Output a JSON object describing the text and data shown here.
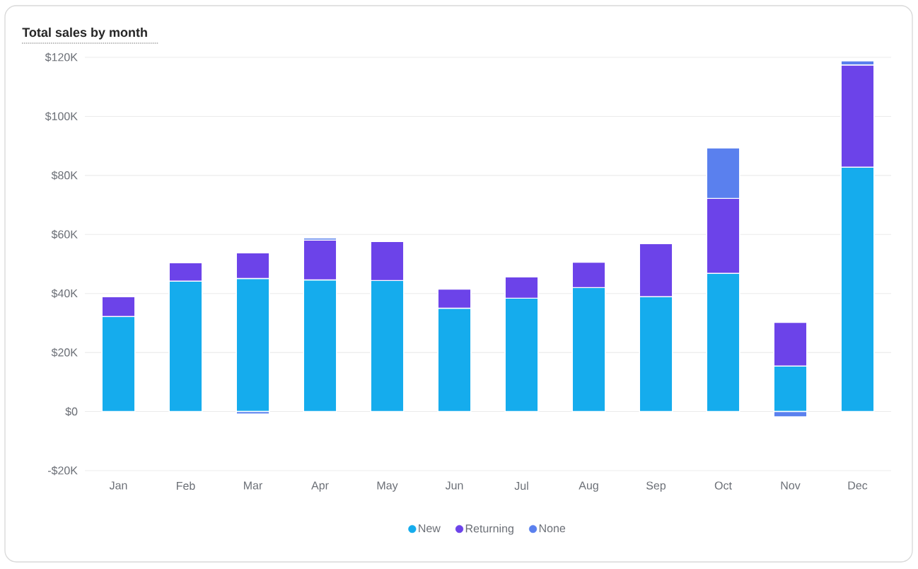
{
  "chart_data": {
    "type": "bar",
    "stacked": true,
    "title": "Total sales by month",
    "categories": [
      "Jan",
      "Feb",
      "Mar",
      "Apr",
      "May",
      "Jun",
      "Jul",
      "Aug",
      "Sep",
      "Oct",
      "Nov",
      "Dec"
    ],
    "series": [
      {
        "name": "New",
        "color": "#15aced",
        "values": [
          32200,
          44200,
          45100,
          44600,
          44400,
          35000,
          38400,
          42000,
          38900,
          46800,
          15400,
          82800
        ]
      },
      {
        "name": "Returning",
        "color": "#6c43e9",
        "values": [
          6700,
          6200,
          8700,
          13500,
          13200,
          6500,
          7200,
          8600,
          18000,
          25400,
          14800,
          34600
        ]
      },
      {
        "name": "None",
        "color": "#5a80ee",
        "values": [
          null,
          null,
          -800,
          700,
          null,
          null,
          null,
          null,
          null,
          17100,
          -1800,
          1400
        ]
      }
    ],
    "ylim": [
      -20000,
      120000
    ],
    "yticks": [
      {
        "value": -20000,
        "label": "-$20K"
      },
      {
        "value": 0,
        "label": "$0"
      },
      {
        "value": 20000,
        "label": "$20K"
      },
      {
        "value": 40000,
        "label": "$40K"
      },
      {
        "value": 60000,
        "label": "$60K"
      },
      {
        "value": 80000,
        "label": "$80K"
      },
      {
        "value": 100000,
        "label": "$100K"
      },
      {
        "value": 120000,
        "label": "$120K"
      }
    ],
    "grid": "y",
    "legend": "bottom"
  }
}
